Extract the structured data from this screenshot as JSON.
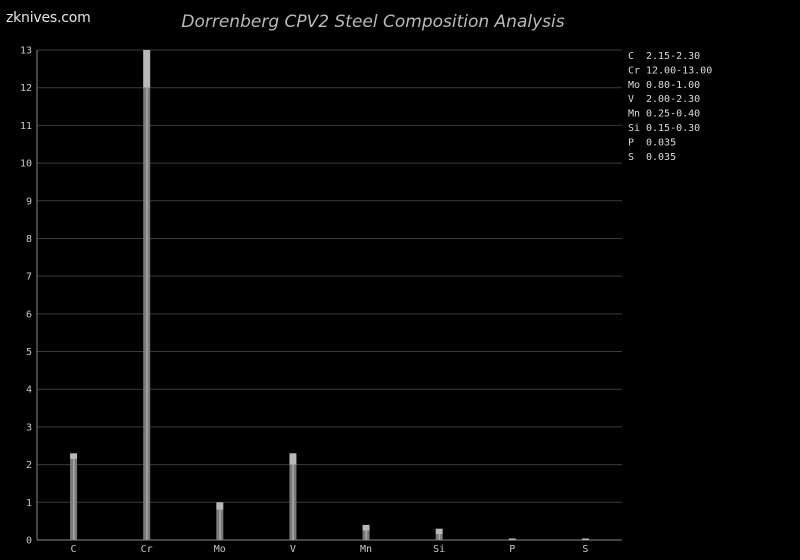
{
  "site": {
    "name": "zknives.com"
  },
  "chart_data": {
    "type": "bar",
    "title": "Dorrenberg CPV2 Steel Composition Analysis",
    "xlabel": "",
    "ylabel": "",
    "ylim": [
      0,
      13
    ],
    "yticks": [
      0,
      1,
      2,
      3,
      4,
      5,
      6,
      7,
      8,
      9,
      10,
      11,
      12,
      13
    ],
    "grid": true,
    "legend_position": "top-right",
    "categories": [
      "C",
      "Cr",
      "Mo",
      "V",
      "Mn",
      "Si",
      "P",
      "S"
    ],
    "ranges": [
      {
        "min": 2.15,
        "max": 2.3
      },
      {
        "min": 12.0,
        "max": 13.0
      },
      {
        "min": 0.8,
        "max": 1.0
      },
      {
        "min": 2.0,
        "max": 2.3
      },
      {
        "min": 0.25,
        "max": 0.4
      },
      {
        "min": 0.15,
        "max": 0.3
      },
      {
        "min": 0,
        "max": 0.035
      },
      {
        "min": 0,
        "max": 0.035
      }
    ],
    "legend": [
      {
        "element": "C",
        "value": "2.15-2.30"
      },
      {
        "element": "Cr",
        "value": "12.00-13.00"
      },
      {
        "element": "Mo",
        "value": "0.80-1.00"
      },
      {
        "element": "V",
        "value": "2.00-2.30"
      },
      {
        "element": "Mn",
        "value": "0.25-0.40"
      },
      {
        "element": "Si",
        "value": "0.15-0.30"
      },
      {
        "element": "P",
        "value": "0.035"
      },
      {
        "element": "S",
        "value": "0.035"
      }
    ],
    "colors": {
      "bar_lower": "#7a7a7a",
      "bar_range": "#b8b8b8",
      "background": "#000000"
    }
  }
}
